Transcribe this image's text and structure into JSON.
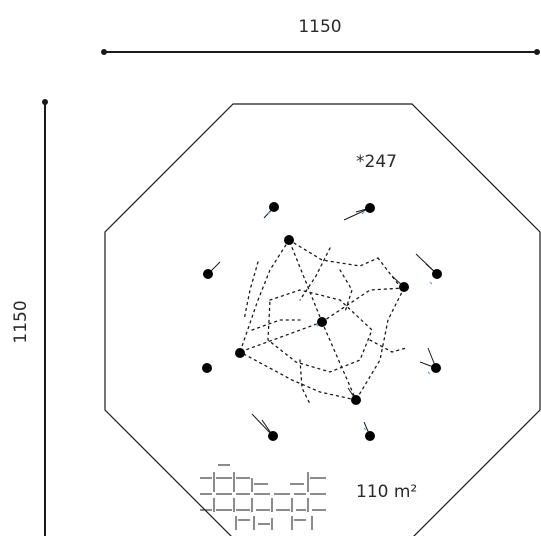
{
  "dimensions": {
    "width_label": "1150",
    "height_label": "1150"
  },
  "annotations": {
    "item_number": "*247",
    "area_label": "110 m²"
  },
  "colors": {
    "line": "#1a1a1a",
    "text": "#2a2a2a",
    "accent_dot": "#4aa8c8"
  },
  "icons": {
    "anchor_points": "black-dot-icon",
    "surface_hatch": "paving-tiles-icon"
  }
}
